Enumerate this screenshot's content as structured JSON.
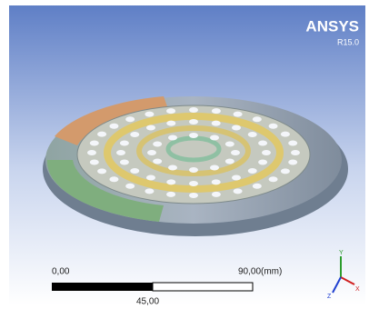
{
  "logo": {
    "title": "ANSYS",
    "version": "R15.0"
  },
  "scale_bar": {
    "start": "0,00",
    "end": "90,00(mm)",
    "middle": "45,00"
  },
  "triad": {
    "y": "Y",
    "z": "Z",
    "x": "X"
  }
}
